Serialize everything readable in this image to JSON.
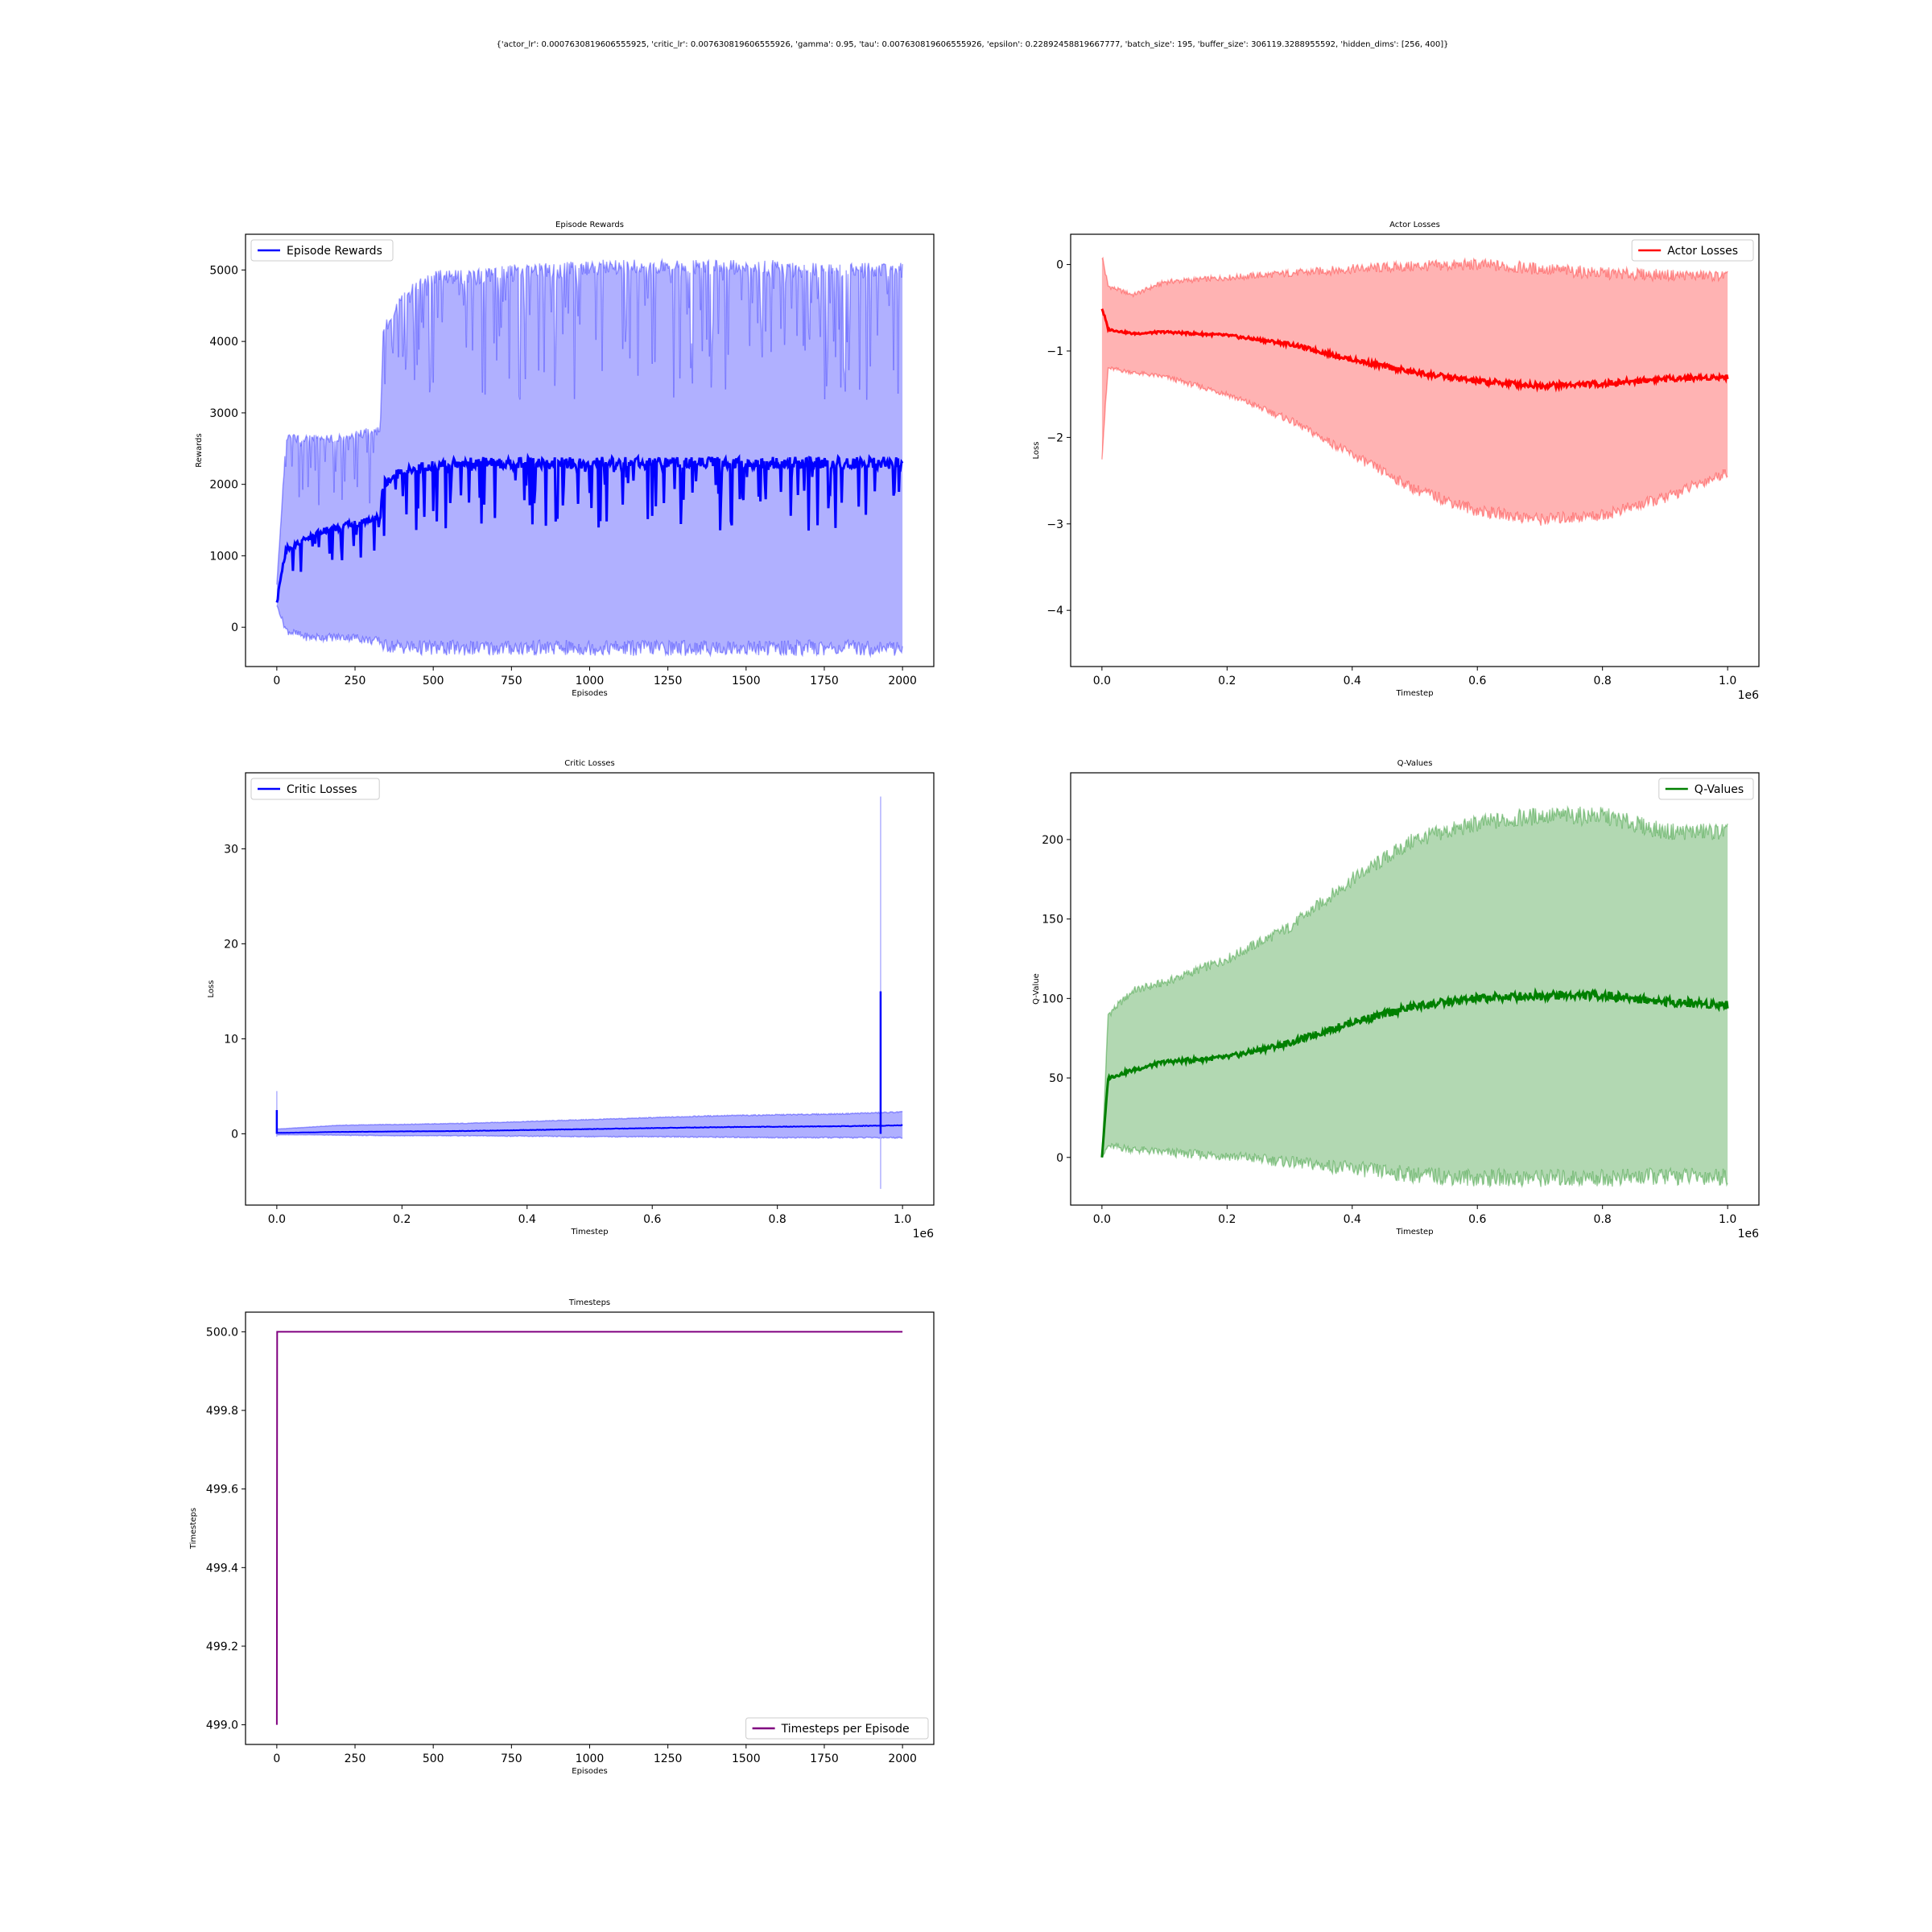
{
  "figure": {
    "suptitle": "{'actor_lr': 0.0007630819606555925, 'critic_lr': 0.007630819606555926, 'gamma': 0.95, 'tau': 0.007630819606555926, 'epsilon': 0.22892458819667777, 'batch_size': 195, 'buffer_size': 306119.3288955592, 'hidden_dims': [256, 400]}"
  },
  "chart_data": [
    {
      "id": "rewards",
      "type": "line",
      "title": "Episode Rewards",
      "xlabel": "Episodes",
      "ylabel": "Rewards",
      "xlim": [
        -100,
        2100
      ],
      "ylim": [
        -550,
        5500
      ],
      "xticks": [
        0,
        250,
        500,
        750,
        1000,
        1250,
        1500,
        1750,
        2000
      ],
      "xtick_labels": [
        "0",
        "250",
        "500",
        "750",
        "1000",
        "1250",
        "1500",
        "1750",
        "2000"
      ],
      "yticks": [
        0,
        1000,
        2000,
        3000,
        4000,
        5000
      ],
      "ytick_labels": [
        "0",
        "1000",
        "2000",
        "3000",
        "4000",
        "5000"
      ],
      "xscale_label": "",
      "legend": {
        "labels": [
          "Episode Rewards"
        ],
        "loc": "upper-left"
      },
      "series": [
        {
          "name": "Episode Rewards",
          "color": "#0000ff",
          "band_color": "#b0b0ff",
          "x": [
            0,
            30,
            60,
            100,
            150,
            200,
            250,
            300,
            330,
            340,
            400,
            500,
            600,
            700,
            800,
            900,
            1000,
            1100,
            1200,
            1300,
            1400,
            1500,
            1600,
            1700,
            1800,
            1900,
            2000
          ],
          "mean": [
            400,
            1100,
            1150,
            1250,
            1350,
            1400,
            1450,
            1500,
            1550,
            2000,
            2200,
            2250,
            2300,
            2300,
            2300,
            2300,
            2300,
            2300,
            2300,
            2300,
            2300,
            2300,
            2300,
            2300,
            2300,
            2300,
            2300
          ],
          "upper": [
            600,
            2700,
            2700,
            2700,
            2700,
            2700,
            2750,
            2800,
            2800,
            4200,
            4800,
            5000,
            5000,
            5050,
            5100,
            5100,
            5150,
            5150,
            5150,
            5150,
            5150,
            5150,
            5150,
            5100,
            5100,
            5100,
            5100
          ],
          "lower": [
            300,
            -100,
            -150,
            -200,
            -200,
            -200,
            -200,
            -250,
            -250,
            -350,
            -380,
            -400,
            -400,
            -400,
            -400,
            -400,
            -400,
            -400,
            -400,
            -400,
            -400,
            -400,
            -400,
            -400,
            -400,
            -400,
            -400
          ]
        }
      ]
    },
    {
      "id": "actor",
      "type": "line",
      "title": "Actor Losses",
      "xlabel": "Timestep",
      "ylabel": "Loss",
      "xlim": [
        -0.05,
        1.05
      ],
      "ylim": [
        -4.65,
        0.35
      ],
      "xticks": [
        0.0,
        0.2,
        0.4,
        0.6,
        0.8,
        1.0
      ],
      "xtick_labels": [
        "0.0",
        "0.2",
        "0.4",
        "0.6",
        "0.8",
        "1.0"
      ],
      "yticks": [
        0,
        -1,
        -2,
        -3,
        -4
      ],
      "ytick_labels": [
        "0",
        "−1",
        "−2",
        "−3",
        "−4"
      ],
      "xscale_label": "1e6",
      "legend": {
        "labels": [
          "Actor Losses"
        ],
        "loc": "upper-right"
      },
      "series": [
        {
          "name": "Actor Losses",
          "color": "#ff0000",
          "band_color": "#ffb3b3",
          "x": [
            0,
            0.01,
            0.05,
            0.1,
            0.2,
            0.3,
            0.4,
            0.5,
            0.6,
            0.7,
            0.8,
            0.9,
            1.0
          ],
          "mean": [
            -0.5,
            -0.75,
            -0.8,
            -0.78,
            -0.82,
            -0.92,
            -1.1,
            -1.25,
            -1.35,
            -1.4,
            -1.38,
            -1.32,
            -1.3
          ],
          "upper": [
            0.1,
            -0.25,
            -0.35,
            -0.2,
            -0.15,
            -0.1,
            -0.05,
            -0.02,
            0.0,
            -0.05,
            -0.1,
            -0.12,
            -0.13
          ],
          "lower": [
            -2.2,
            -1.2,
            -1.25,
            -1.3,
            -1.5,
            -1.8,
            -2.2,
            -2.6,
            -2.85,
            -2.95,
            -2.9,
            -2.7,
            -2.4
          ]
        }
      ]
    },
    {
      "id": "critic",
      "type": "line",
      "title": "Critic Losses",
      "xlabel": "Timestep",
      "ylabel": "Loss",
      "xlim": [
        -0.05,
        1.05
      ],
      "ylim": [
        -7.5,
        38
      ],
      "xticks": [
        0.0,
        0.2,
        0.4,
        0.6,
        0.8,
        1.0
      ],
      "xtick_labels": [
        "0.0",
        "0.2",
        "0.4",
        "0.6",
        "0.8",
        "1.0"
      ],
      "yticks": [
        0,
        10,
        20,
        30
      ],
      "ytick_labels": [
        "0",
        "10",
        "20",
        "30"
      ],
      "xscale_label": "1e6",
      "legend": {
        "labels": [
          "Critic Losses"
        ],
        "loc": "upper-left"
      },
      "series": [
        {
          "name": "Critic Losses",
          "color": "#0000ff",
          "band_color": "#b0b0ff",
          "x": [
            0,
            0.05,
            0.1,
            0.2,
            0.3,
            0.4,
            0.5,
            0.6,
            0.7,
            0.8,
            0.9,
            0.95,
            1.0
          ],
          "mean": [
            0.1,
            0.15,
            0.2,
            0.25,
            0.3,
            0.4,
            0.5,
            0.6,
            0.7,
            0.75,
            0.8,
            0.85,
            0.9
          ],
          "upper": [
            0.5,
            0.7,
            0.9,
            1.0,
            1.1,
            1.3,
            1.5,
            1.7,
            1.9,
            2.0,
            2.1,
            2.2,
            2.3
          ],
          "lower": [
            -0.1,
            -0.1,
            -0.15,
            -0.2,
            -0.2,
            -0.25,
            -0.3,
            -0.3,
            -0.35,
            -0.4,
            -0.4,
            -0.4,
            -0.4
          ]
        }
      ],
      "spikes": [
        {
          "x": 0.0,
          "mean": 2.5,
          "upper": 4.5,
          "lower": -0.3
        },
        {
          "x": 0.965,
          "mean": 15.0,
          "upper": 35.5,
          "lower": -5.8
        }
      ]
    },
    {
      "id": "qvalues",
      "type": "line",
      "title": "Q-Values",
      "xlabel": "Timestep",
      "ylabel": "Q-Value",
      "xlim": [
        -0.05,
        1.05
      ],
      "ylim": [
        -30,
        242
      ],
      "xticks": [
        0.0,
        0.2,
        0.4,
        0.6,
        0.8,
        1.0
      ],
      "xtick_labels": [
        "0.0",
        "0.2",
        "0.4",
        "0.6",
        "0.8",
        "1.0"
      ],
      "yticks": [
        0,
        50,
        100,
        150,
        200
      ],
      "ytick_labels": [
        "0",
        "50",
        "100",
        "150",
        "200"
      ],
      "xscale_label": "1e6",
      "legend": {
        "labels": [
          "Q-Values"
        ],
        "loc": "upper-right"
      },
      "series": [
        {
          "name": "Q-Values",
          "color": "#008000",
          "band_color": "#b2d8b2",
          "x": [
            0,
            0.01,
            0.05,
            0.1,
            0.2,
            0.3,
            0.4,
            0.5,
            0.6,
            0.7,
            0.8,
            0.9,
            1.0
          ],
          "mean": [
            0,
            50,
            55,
            60,
            63,
            72,
            85,
            95,
            100,
            102,
            102,
            98,
            96
          ],
          "upper": [
            0,
            90,
            105,
            110,
            125,
            145,
            175,
            200,
            210,
            215,
            215,
            205,
            205
          ],
          "lower": [
            0,
            7,
            5,
            3,
            1,
            -3,
            -7,
            -11,
            -13,
            -13,
            -13,
            -12,
            -12
          ]
        }
      ]
    },
    {
      "id": "timesteps",
      "type": "line",
      "title": "Timesteps",
      "xlabel": "Episodes",
      "ylabel": "Timesteps",
      "xlim": [
        -100,
        2100
      ],
      "ylim": [
        498.95,
        500.05
      ],
      "xticks": [
        0,
        250,
        500,
        750,
        1000,
        1250,
        1500,
        1750,
        2000
      ],
      "xtick_labels": [
        "0",
        "250",
        "500",
        "750",
        "1000",
        "1250",
        "1500",
        "1750",
        "2000"
      ],
      "yticks": [
        499.0,
        499.2,
        499.4,
        499.6,
        499.8,
        500.0
      ],
      "ytick_labels": [
        "499.0",
        "499.2",
        "499.4",
        "499.6",
        "499.8",
        "500.0"
      ],
      "xscale_label": "",
      "legend": {
        "labels": [
          "Timesteps per Episode"
        ],
        "loc": "lower-right"
      },
      "series": [
        {
          "name": "Timesteps per Episode",
          "color": "#800080",
          "x": [
            0,
            1,
            2000
          ],
          "y": [
            499,
            500,
            500
          ]
        }
      ]
    }
  ]
}
